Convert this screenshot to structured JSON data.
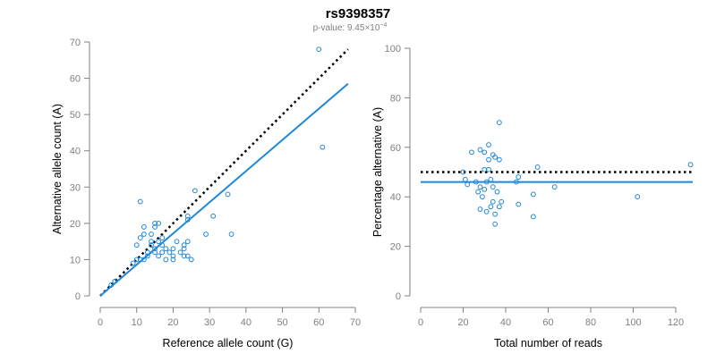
{
  "header": {
    "title": "rs9398357",
    "pvalue_label": "p-value: 9.45",
    "pvalue_times": "×10",
    "pvalue_exponent": "−4"
  },
  "chart_data": [
    {
      "type": "scatter",
      "name": "counts",
      "xlabel": "Reference allele count (G)",
      "ylabel": "Alternative allele count (A)",
      "xlim": [
        0,
        70
      ],
      "ylim": [
        0,
        70
      ],
      "xticks": [
        0,
        10,
        20,
        30,
        40,
        50,
        60,
        70
      ],
      "yticks": [
        0,
        10,
        20,
        30,
        40,
        50,
        60,
        70
      ],
      "point_color": "#1f88d8",
      "points": [
        [
          3,
          3
        ],
        [
          4,
          4
        ],
        [
          9,
          9
        ],
        [
          10,
          10
        ],
        [
          10,
          14
        ],
        [
          11,
          10
        ],
        [
          11,
          26
        ],
        [
          11,
          16
        ],
        [
          12,
          19
        ],
        [
          12,
          17
        ],
        [
          12,
          10
        ],
        [
          13,
          11
        ],
        [
          13,
          12
        ],
        [
          14,
          14
        ],
        [
          14,
          15
        ],
        [
          14,
          17
        ],
        [
          15,
          13
        ],
        [
          15,
          19
        ],
        [
          15,
          20
        ],
        [
          15,
          12
        ],
        [
          16,
          11
        ],
        [
          16,
          15
        ],
        [
          16,
          20
        ],
        [
          17,
          12
        ],
        [
          17,
          14
        ],
        [
          17,
          16
        ],
        [
          18,
          10
        ],
        [
          18,
          13
        ],
        [
          19,
          12
        ],
        [
          20,
          10
        ],
        [
          20,
          11
        ],
        [
          20,
          13
        ],
        [
          21,
          15
        ],
        [
          22,
          12
        ],
        [
          23,
          14
        ],
        [
          23,
          11
        ],
        [
          23,
          13
        ],
        [
          24,
          15
        ],
        [
          24,
          21
        ],
        [
          24,
          22
        ],
        [
          24,
          11
        ],
        [
          25,
          10
        ],
        [
          26,
          29
        ],
        [
          29,
          17
        ],
        [
          31,
          22
        ],
        [
          35,
          28
        ],
        [
          36,
          17
        ],
        [
          60,
          68
        ],
        [
          61,
          41
        ]
      ],
      "lines": [
        {
          "name": "expected",
          "style": "dotted",
          "color": "#000000",
          "x": [
            0,
            68
          ],
          "y": [
            0,
            68
          ]
        },
        {
          "name": "fit",
          "style": "solid",
          "color": "#1f88d8",
          "x": [
            0,
            68
          ],
          "y": [
            0,
            58.5
          ]
        }
      ]
    },
    {
      "type": "scatter",
      "name": "percentage",
      "xlabel": "Total number of reads",
      "ylabel": "Percentage alternative (A)",
      "xlim": [
        0,
        128
      ],
      "ylim": [
        0,
        100
      ],
      "xticks": [
        0,
        20,
        40,
        60,
        80,
        100,
        120
      ],
      "yticks": [
        0,
        20,
        40,
        60,
        80,
        100
      ],
      "point_color": "#1f88d8",
      "points": [
        [
          20,
          50
        ],
        [
          21,
          47
        ],
        [
          22,
          45
        ],
        [
          24,
          58
        ],
        [
          26,
          46
        ],
        [
          27,
          42
        ],
        [
          28,
          59
        ],
        [
          28,
          44
        ],
        [
          28,
          35
        ],
        [
          29,
          40
        ],
        [
          30,
          51
        ],
        [
          30,
          58
        ],
        [
          30,
          43
        ],
        [
          31,
          34
        ],
        [
          31,
          46
        ],
        [
          32,
          61
        ],
        [
          32,
          55
        ],
        [
          32,
          51
        ],
        [
          33,
          47
        ],
        [
          33,
          36
        ],
        [
          34,
          57
        ],
        [
          34,
          44
        ],
        [
          34,
          38
        ],
        [
          35,
          56
        ],
        [
          35,
          33
        ],
        [
          35,
          29
        ],
        [
          36,
          42
        ],
        [
          37,
          36
        ],
        [
          37,
          70
        ],
        [
          37,
          55
        ],
        [
          38,
          38
        ],
        [
          45,
          46
        ],
        [
          46,
          37
        ],
        [
          46,
          48
        ],
        [
          53,
          32
        ],
        [
          53,
          41
        ],
        [
          55,
          52
        ],
        [
          63,
          44
        ],
        [
          102,
          40
        ],
        [
          127,
          53
        ]
      ],
      "lines": [
        {
          "name": "expected",
          "style": "dotted",
          "color": "#000000",
          "x": [
            0,
            128
          ],
          "y": [
            50,
            50
          ]
        },
        {
          "name": "fit",
          "style": "solid",
          "color": "#1f88d8",
          "x": [
            0,
            128
          ],
          "y": [
            46,
            46
          ]
        }
      ]
    }
  ]
}
